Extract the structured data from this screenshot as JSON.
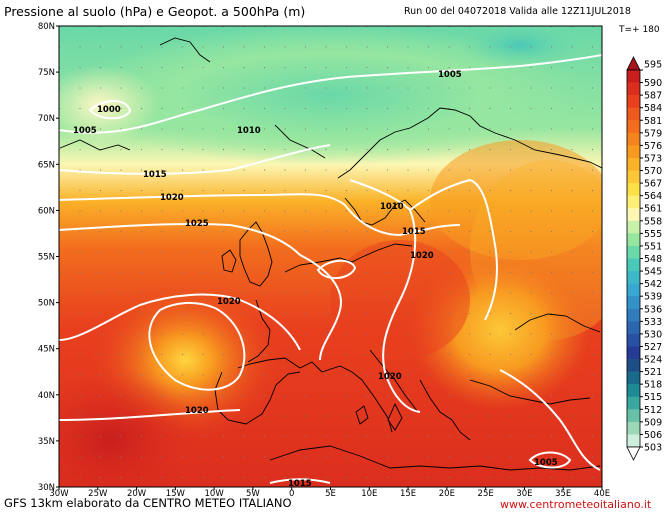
{
  "header": {
    "title": "Pressione al suolo (hPa) e Geopot. a 500hPa (m)",
    "run_info": "Run 00 del 04072018  Valida alle 12Z11JUL2018",
    "timestep": "T=+ 180"
  },
  "footer": {
    "credit": "GFS 13km elaborato da CENTRO METEO ITALIANO",
    "website": "www.centrometeoitaliano.it"
  },
  "map": {
    "lat_labels": [
      "80N",
      "75N",
      "70N",
      "65N",
      "60N",
      "55N",
      "50N",
      "45N",
      "40N",
      "35N",
      "30N"
    ],
    "lon_labels": [
      "30W",
      "25W",
      "20W",
      "15W",
      "10W",
      "5W",
      "0",
      "5E",
      "10E",
      "15E",
      "20E",
      "25E",
      "30E",
      "35E",
      "40E"
    ],
    "isobars": [
      {
        "label": "1005"
      },
      {
        "label": "1000"
      },
      {
        "label": "1005"
      },
      {
        "label": "1010"
      },
      {
        "label": "1015"
      },
      {
        "label": "1020"
      },
      {
        "label": "1025"
      },
      {
        "label": "1010"
      },
      {
        "label": "1015"
      },
      {
        "label": "1020"
      },
      {
        "label": "1020"
      },
      {
        "label": "1020"
      },
      {
        "label": "1020"
      },
      {
        "label": "1005"
      },
      {
        "label": "1015"
      }
    ]
  },
  "colorbar": {
    "labels": [
      "595",
      "590",
      "587",
      "584",
      "581",
      "579",
      "576",
      "573",
      "570",
      "567",
      "564",
      "561",
      "558",
      "555",
      "551",
      "548",
      "545",
      "542",
      "539",
      "536",
      "533",
      "530",
      "527",
      "524",
      "521",
      "518",
      "515",
      "512",
      "509",
      "506",
      "503"
    ],
    "colors": [
      "#a8141c",
      "#c81e1e",
      "#dc2e1e",
      "#e8401e",
      "#ee5a1e",
      "#f26e1e",
      "#f5841e",
      "#f89a20",
      "#fab228",
      "#fcc838",
      "#fde048",
      "#fdef78",
      "#fbf7b4",
      "#c8f0a8",
      "#96e6a0",
      "#6ad8a8",
      "#4ac8b8",
      "#3cb8c8",
      "#38a8d0",
      "#3492c8",
      "#307cbc",
      "#2c66b0",
      "#2850a4",
      "#243c96",
      "#1e4e88",
      "#1a6a8c",
      "#1e8a96",
      "#3aa6a0",
      "#68c0a8",
      "#9cd8b8",
      "#cdeedd"
    ]
  }
}
